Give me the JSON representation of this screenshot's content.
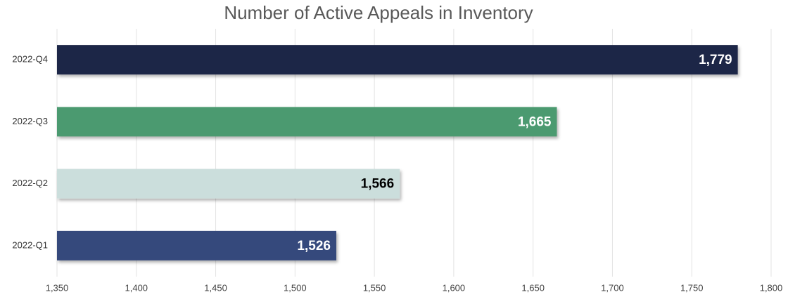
{
  "chart_data": {
    "type": "bar",
    "orientation": "horizontal",
    "title": "Number of Active Appeals in Inventory",
    "categories": [
      "2022-Q4",
      "2022-Q3",
      "2022-Q2",
      "2022-Q1"
    ],
    "values": [
      1779,
      1665,
      1566,
      1526
    ],
    "value_labels": [
      "1,779",
      "1,665",
      "1,566",
      "1,526"
    ],
    "colors": [
      "#1f2746",
      "#4c9a6f",
      "#cbdedc",
      "#35497b"
    ],
    "xlim": [
      1350,
      1800
    ],
    "xticks": [
      {
        "value": 1350,
        "label": "1,350"
      },
      {
        "value": 1400,
        "label": "1,400"
      },
      {
        "value": 1450,
        "label": "1,450"
      },
      {
        "value": 1500,
        "label": "1,500"
      },
      {
        "value": 1550,
        "label": "1,550"
      },
      {
        "value": 1600,
        "label": "1,600"
      },
      {
        "value": 1650,
        "label": "1,650"
      },
      {
        "value": 1700,
        "label": "1,700"
      },
      {
        "value": 1750,
        "label": "1,750"
      },
      {
        "value": 1800,
        "label": "1,800"
      }
    ],
    "grid": true
  }
}
